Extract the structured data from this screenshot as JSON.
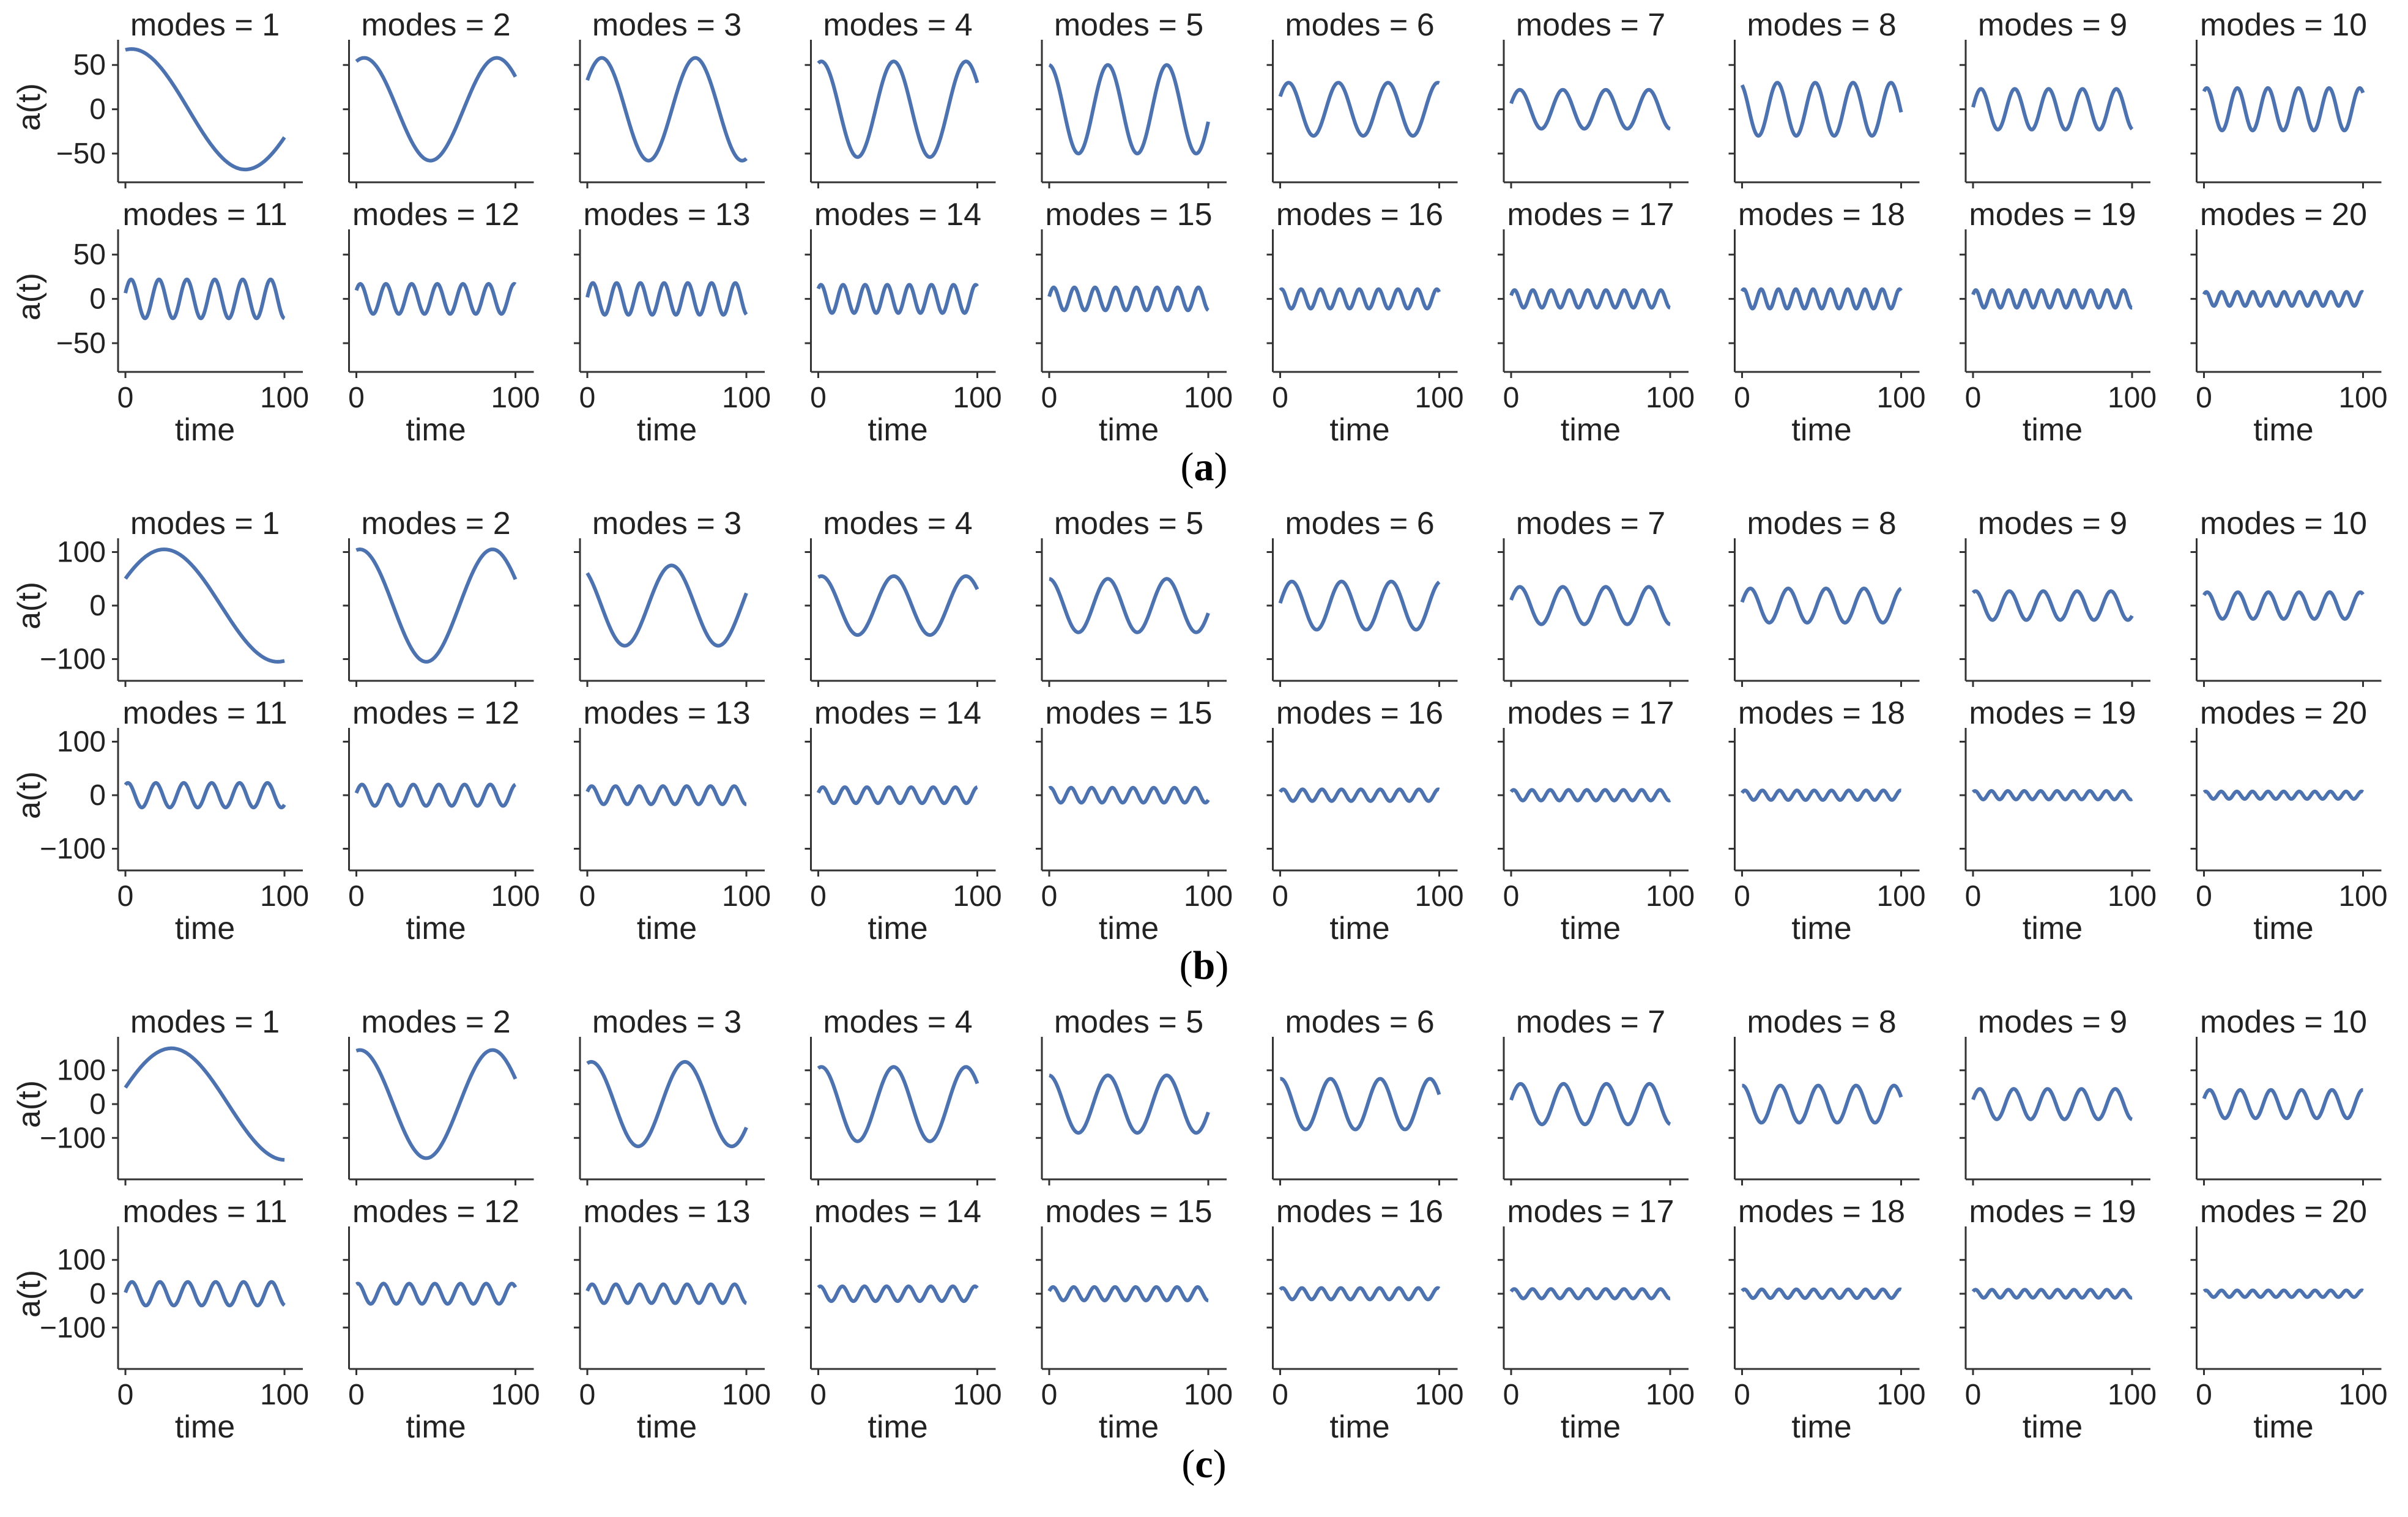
{
  "figure": {
    "series_color": "#4c72b0",
    "panels": [
      {
        "label": "a",
        "ylabel": "a(t)",
        "xlabel": "time",
        "xlim": [
          0,
          100
        ],
        "xticks": [
          0,
          100
        ],
        "ylim": [
          -70,
          75
        ],
        "yticks": [
          50,
          0,
          -50
        ],
        "amplitudes": [
          68,
          58,
          58,
          54,
          50,
          30,
          22,
          30,
          23,
          24,
          22,
          17,
          18,
          16,
          13,
          11,
          10,
          11,
          10,
          8
        ],
        "phases": [
          1.4,
          1.2,
          0.6,
          1.3,
          1.6,
          0.5,
          0.3,
          2.0,
          0.1,
          1.0,
          0.3,
          0.6,
          0.1,
          0.8,
          0.2,
          1.1,
          0.4,
          0.9,
          0.5,
          0.7
        ]
      },
      {
        "label": "b",
        "ylabel": "a(t)",
        "xlabel": "time",
        "xlim": [
          0,
          100
        ],
        "xticks": [
          0,
          100
        ],
        "ylim": [
          -120,
          120
        ],
        "yticks": [
          100,
          0,
          -100
        ],
        "amplitudes": [
          105,
          105,
          75,
          55,
          50,
          45,
          35,
          32,
          27,
          25,
          23,
          20,
          17,
          15,
          14,
          11,
          10,
          9,
          8,
          7
        ],
        "phases": [
          0.5,
          1.4,
          2.2,
          1.3,
          1.6,
          0.1,
          0.3,
          0.2,
          1.1,
          0.9,
          1.0,
          0.2,
          0.4,
          0.3,
          1.2,
          0.6,
          0.7,
          0.5,
          0.8,
          0.9
        ]
      },
      {
        "label": "c",
        "ylabel": "a(t)",
        "xlabel": "time",
        "xlim": [
          0,
          100
        ],
        "xticks": [
          0,
          100
        ],
        "ylim": [
          -190,
          190
        ],
        "yticks": [
          100,
          0,
          -100
        ],
        "amplitudes": [
          165,
          160,
          125,
          110,
          85,
          75,
          60,
          55,
          45,
          42,
          35,
          30,
          28,
          22,
          20,
          17,
          14,
          13,
          12,
          10
        ],
        "phases": [
          0.3,
          1.4,
          1.3,
          1.3,
          1.6,
          1.5,
          0.2,
          1.5,
          0.3,
          0.4,
          0.1,
          1.2,
          0.3,
          1.0,
          0.4,
          0.8,
          0.5,
          0.7,
          0.6,
          0.8
        ]
      }
    ]
  },
  "chart_data": [
    {
      "type": "line",
      "label": "(a)",
      "panel_titles": [
        "modes = 1",
        "modes = 2",
        "modes = 3",
        "modes = 4",
        "modes = 5",
        "modes = 6",
        "modes = 7",
        "modes = 8",
        "modes = 9",
        "modes = 10",
        "modes = 11",
        "modes = 12",
        "modes = 13",
        "modes = 14",
        "modes = 15",
        "modes = 16",
        "modes = 17",
        "modes = 18",
        "modes = 19",
        "modes = 20"
      ],
      "xlabel": "time",
      "ylabel": "a(t)",
      "x_range": [
        0,
        100
      ],
      "y_ticks": [
        -50,
        0,
        50
      ],
      "approx_amplitude_per_mode": [
        68,
        58,
        58,
        54,
        50,
        30,
        22,
        30,
        23,
        24,
        22,
        17,
        18,
        16,
        13,
        11,
        10,
        11,
        10,
        8
      ],
      "cycles_per_panel": "approximately modes / 2 periods over time 0-100"
    },
    {
      "type": "line",
      "label": "(b)",
      "panel_titles": [
        "modes = 1",
        "modes = 2",
        "modes = 3",
        "modes = 4",
        "modes = 5",
        "modes = 6",
        "modes = 7",
        "modes = 8",
        "modes = 9",
        "modes = 10",
        "modes = 11",
        "modes = 12",
        "modes = 13",
        "modes = 14",
        "modes = 15",
        "modes = 16",
        "modes = 17",
        "modes = 18",
        "modes = 19",
        "modes = 20"
      ],
      "xlabel": "time",
      "ylabel": "a(t)",
      "x_range": [
        0,
        100
      ],
      "y_ticks": [
        -100,
        0,
        100
      ],
      "approx_amplitude_per_mode": [
        105,
        105,
        75,
        55,
        50,
        45,
        35,
        32,
        27,
        25,
        23,
        20,
        17,
        15,
        14,
        11,
        10,
        9,
        8,
        7
      ],
      "cycles_per_panel": "approximately modes / 2 periods over time 0-100"
    },
    {
      "type": "line",
      "label": "(c)",
      "panel_titles": [
        "modes = 1",
        "modes = 2",
        "modes = 3",
        "modes = 4",
        "modes = 5",
        "modes = 6",
        "modes = 7",
        "modes = 8",
        "modes = 9",
        "modes = 10",
        "modes = 11",
        "modes = 12",
        "modes = 13",
        "modes = 14",
        "modes = 15",
        "modes = 16",
        "modes = 17",
        "modes = 18",
        "modes = 19",
        "modes = 20"
      ],
      "xlabel": "time",
      "ylabel": "a(t)",
      "x_range": [
        0,
        100
      ],
      "y_ticks": [
        -100,
        0,
        100
      ],
      "approx_amplitude_per_mode": [
        165,
        160,
        125,
        110,
        85,
        75,
        60,
        55,
        45,
        42,
        35,
        30,
        28,
        22,
        20,
        17,
        14,
        13,
        12,
        10
      ],
      "cycles_per_panel": "approximately modes / 2 periods over time 0-100"
    }
  ]
}
